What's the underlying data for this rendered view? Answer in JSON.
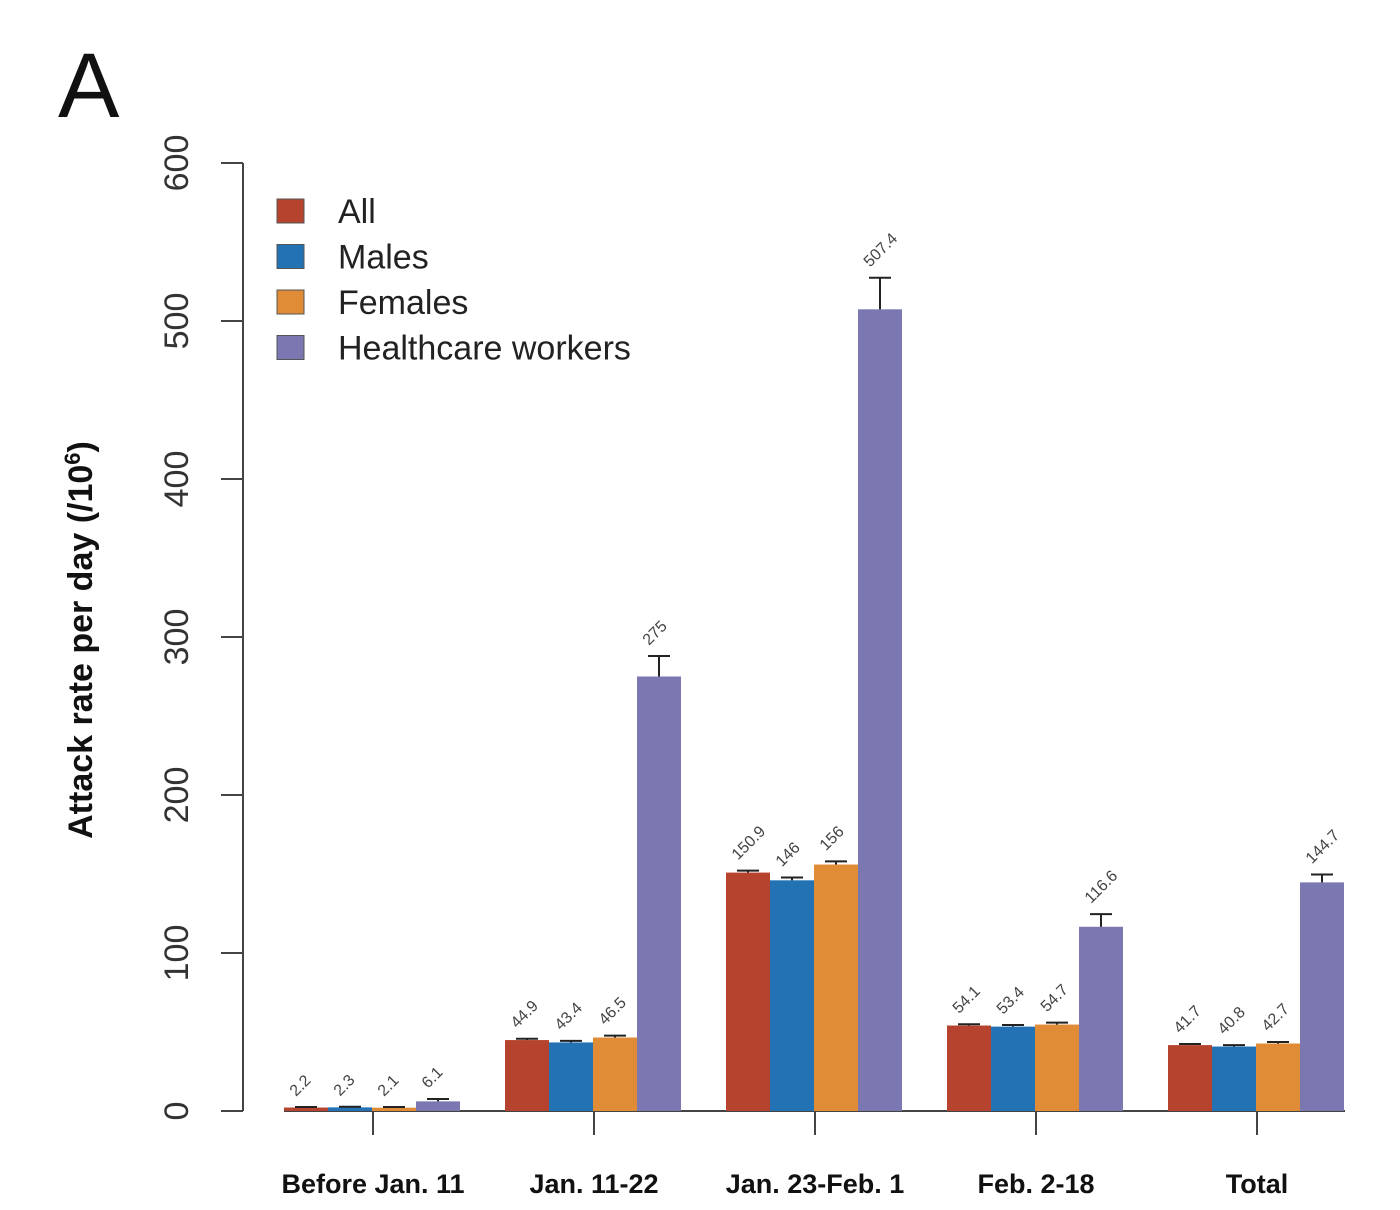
{
  "chart_data": {
    "type": "bar",
    "panel_label": "A",
    "title": "",
    "xlabel": "",
    "ylabel": "Attack rate per day (/10",
    "ylabel_superscript": "6",
    "ylabel_close": ")",
    "ylim": [
      0,
      600
    ],
    "yticks": [
      "0",
      "100",
      "200",
      "300",
      "400",
      "500",
      "600"
    ],
    "grid": false,
    "legend_position": "top-left",
    "categories": [
      "Before Jan. 11",
      "Jan. 11-22",
      "Jan. 23-Feb. 1",
      "Feb. 2-18",
      "Total"
    ],
    "series": [
      {
        "name": "All",
        "color": "#b5432e",
        "values": [
          2.2,
          44.9,
          150.9,
          54.1,
          41.7
        ],
        "labels": [
          "2.2",
          "44.9",
          "150.9",
          "54.1",
          "41.7"
        ],
        "error": [
          0.3,
          0.8,
          1.2,
          0.8,
          0.7
        ]
      },
      {
        "name": "Males",
        "color": "#2272b4",
        "values": [
          2.3,
          43.4,
          146,
          53.4,
          40.8
        ],
        "labels": [
          "2.3",
          "43.4",
          "146",
          "53.4",
          "40.8"
        ],
        "error": [
          0.4,
          1.0,
          1.8,
          1.0,
          0.9
        ]
      },
      {
        "name": "Females",
        "color": "#e08b35",
        "values": [
          2.1,
          46.5,
          156,
          54.7,
          42.7
        ],
        "labels": [
          "2.1",
          "46.5",
          "156",
          "54.7",
          "42.7"
        ],
        "error": [
          0.4,
          1.2,
          2.0,
          1.2,
          1.0
        ]
      },
      {
        "name": "Healthcare workers",
        "color": "#7b77b1",
        "values": [
          6.1,
          275,
          507.4,
          116.6,
          144.7
        ],
        "labels": [
          "6.1",
          "275",
          "507.4",
          "116.6",
          "144.7"
        ],
        "error": [
          1.5,
          13,
          20,
          8,
          5
        ]
      }
    ]
  }
}
